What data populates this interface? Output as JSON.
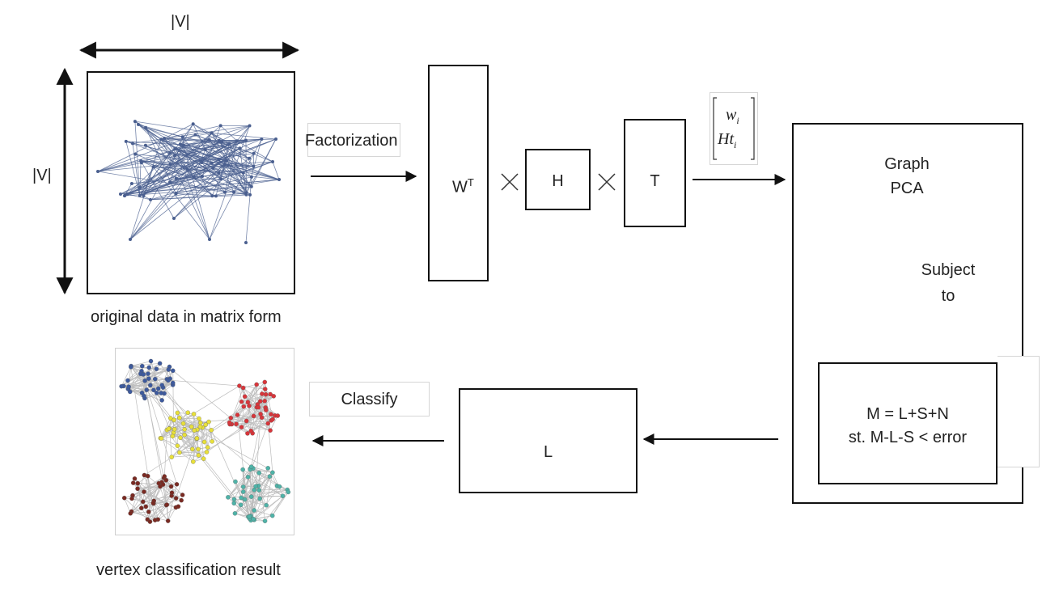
{
  "labels": {
    "dim_top": "|V|",
    "dim_left": "|V|",
    "original_caption": "original data in matrix form",
    "result_caption": "vertex classification result",
    "factorization": "Factorization",
    "classify": "Classify",
    "w_base": "W",
    "w_sup": "T",
    "h": "H",
    "t": "T",
    "graph_pca_1": "Graph",
    "graph_pca_2": "PCA",
    "subject_to_1": "Subject",
    "subject_to_2": "to",
    "eq_line1": "M = L+S+N",
    "eq_line2": "st. M-L-S < error",
    "l_box": "L",
    "vec_top": "w",
    "vec_top_sub": "i",
    "vec_bottom": "Ht",
    "vec_bottom_sub": "i"
  },
  "colors": {
    "graph_edges": "#4a5f8f",
    "cluster_blue": "#3d5a9e",
    "cluster_red": "#d8353a",
    "cluster_yellow": "#e8e03a",
    "cluster_brown": "#7a2a22",
    "cluster_teal": "#4fb3a8",
    "cluster_edges": "#bdbdbd"
  }
}
